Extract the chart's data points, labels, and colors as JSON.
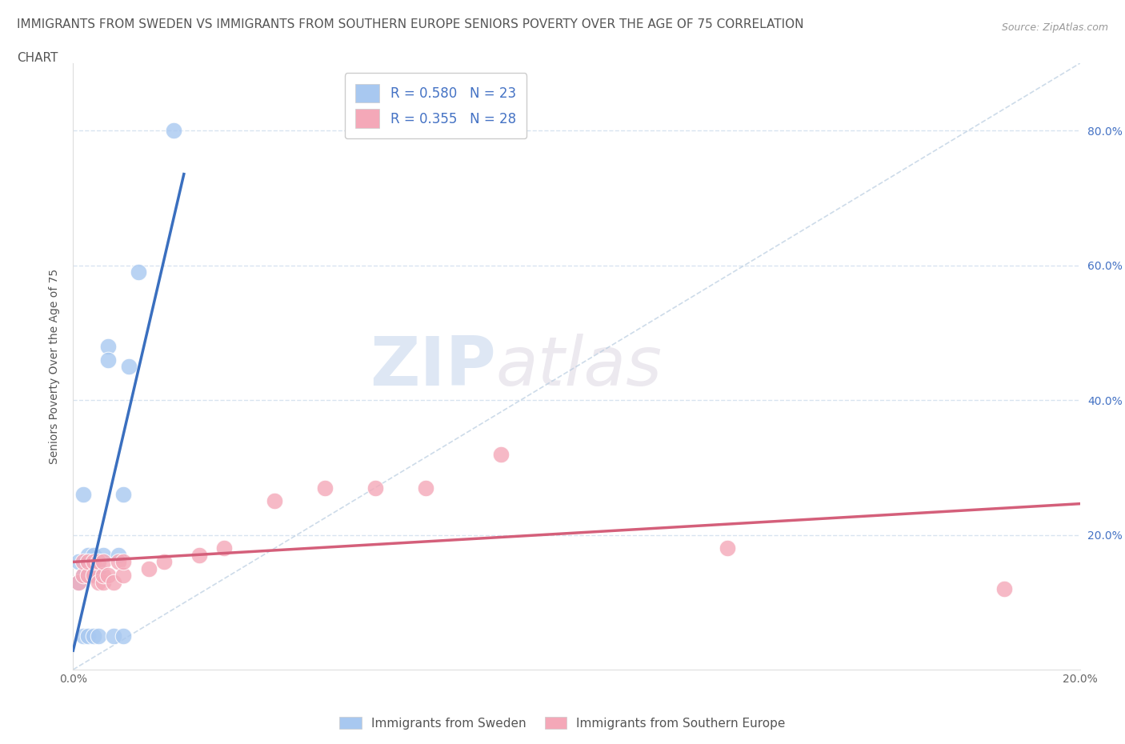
{
  "title_line1": "IMMIGRANTS FROM SWEDEN VS IMMIGRANTS FROM SOUTHERN EUROPE SENIORS POVERTY OVER THE AGE OF 75 CORRELATION",
  "title_line2": "CHART",
  "source": "Source: ZipAtlas.com",
  "ylabel": "Seniors Poverty Over the Age of 75",
  "xlim": [
    0.0,
    0.2
  ],
  "ylim": [
    0.0,
    0.9
  ],
  "sweden_color": "#a8c8f0",
  "southern_color": "#f4a8b8",
  "sweden_line_color": "#3a6fbf",
  "southern_line_color": "#d45f7a",
  "diag_line_color": "#b8cce0",
  "sweden_R": 0.58,
  "sweden_N": 23,
  "southern_R": 0.355,
  "southern_N": 28,
  "sweden_x": [
    0.001,
    0.001,
    0.002,
    0.002,
    0.002,
    0.003,
    0.003,
    0.003,
    0.004,
    0.004,
    0.004,
    0.005,
    0.005,
    0.006,
    0.007,
    0.007,
    0.008,
    0.009,
    0.01,
    0.01,
    0.011,
    0.013,
    0.02
  ],
  "sweden_y": [
    0.13,
    0.16,
    0.05,
    0.14,
    0.26,
    0.14,
    0.17,
    0.05,
    0.15,
    0.17,
    0.05,
    0.15,
    0.05,
    0.17,
    0.48,
    0.46,
    0.05,
    0.17,
    0.26,
    0.05,
    0.45,
    0.59,
    0.8
  ],
  "southern_x": [
    0.001,
    0.002,
    0.002,
    0.003,
    0.003,
    0.004,
    0.004,
    0.005,
    0.005,
    0.006,
    0.006,
    0.006,
    0.007,
    0.008,
    0.009,
    0.01,
    0.01,
    0.015,
    0.018,
    0.025,
    0.03,
    0.04,
    0.05,
    0.06,
    0.07,
    0.085,
    0.13,
    0.185
  ],
  "southern_y": [
    0.13,
    0.14,
    0.16,
    0.14,
    0.16,
    0.14,
    0.16,
    0.13,
    0.16,
    0.13,
    0.14,
    0.16,
    0.14,
    0.13,
    0.16,
    0.14,
    0.16,
    0.15,
    0.16,
    0.17,
    0.18,
    0.25,
    0.27,
    0.27,
    0.27,
    0.32,
    0.18,
    0.12
  ],
  "watermark_zip": "ZIP",
  "watermark_atlas": "atlas",
  "grid_color": "#d8e4f0",
  "background_color": "#ffffff",
  "title_fontsize": 11,
  "axis_label_fontsize": 10,
  "tick_fontsize": 10,
  "legend_fontsize": 12
}
